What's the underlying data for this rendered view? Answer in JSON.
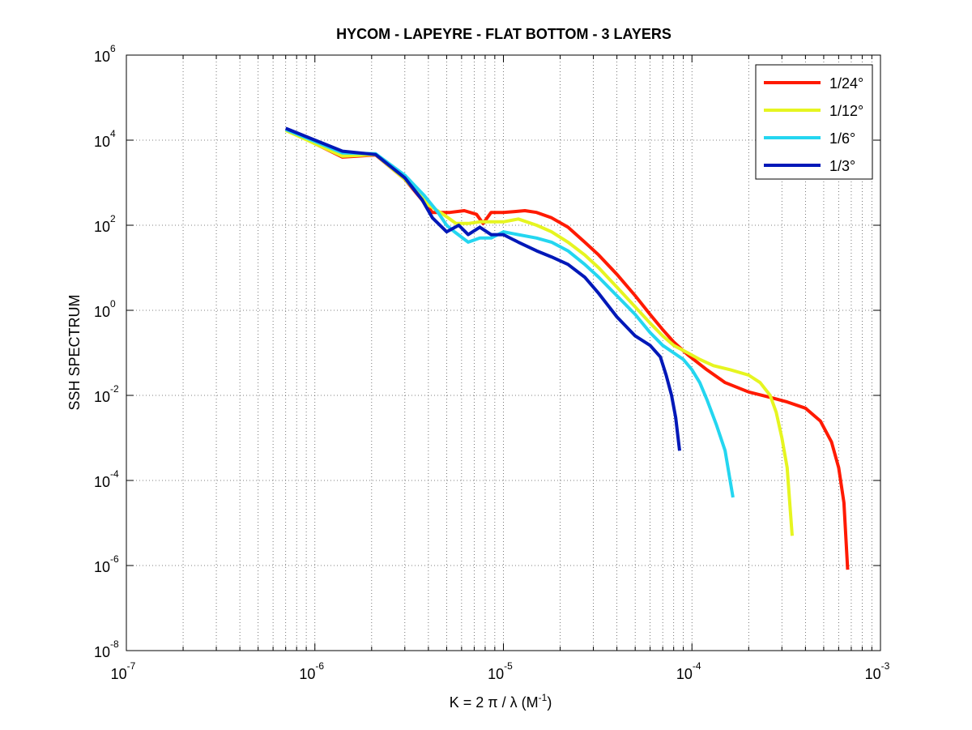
{
  "chart_data": {
    "type": "line",
    "title": "HYCOM - LAPEYRE - FLAT BOTTOM - 3 LAYERS",
    "xlabel_parts": {
      "main": "K = 2 π / λ  (M",
      "exp": "-1",
      "close": ")"
    },
    "ylabel": "SSH SPECTRUM",
    "x_scale": "log",
    "y_scale": "log",
    "xlim": [
      1e-07,
      0.001
    ],
    "ylim": [
      1e-08,
      1000000.0
    ],
    "x_ticks": [
      {
        "base": "10",
        "exp": "-7",
        "value": 1e-07
      },
      {
        "base": "10",
        "exp": "-6",
        "value": 1e-06
      },
      {
        "base": "10",
        "exp": "-5",
        "value": 1e-05
      },
      {
        "base": "10",
        "exp": "-4",
        "value": 0.0001
      },
      {
        "base": "10",
        "exp": "-3",
        "value": 0.001
      }
    ],
    "y_ticks": [
      {
        "base": "10",
        "exp": "-8",
        "value": 1e-08
      },
      {
        "base": "10",
        "exp": "-6",
        "value": 1e-06
      },
      {
        "base": "10",
        "exp": "-4",
        "value": 0.0001
      },
      {
        "base": "10",
        "exp": "-2",
        "value": 0.01
      },
      {
        "base": "10",
        "exp": "0",
        "value": 1
      },
      {
        "base": "10",
        "exp": "2",
        "value": 100
      },
      {
        "base": "10",
        "exp": "4",
        "value": 10000.0
      },
      {
        "base": "10",
        "exp": "6",
        "value": 1000000.0
      }
    ],
    "grid": true,
    "legend_position": "top-right",
    "series": [
      {
        "name": "1/24°",
        "color": "#ff1a00",
        "points": [
          [
            7e-07,
            18000
          ],
          [
            1.4e-06,
            4000
          ],
          [
            2.1e-06,
            4500
          ],
          [
            3e-06,
            1200
          ],
          [
            4.2e-06,
            200
          ],
          [
            5.2e-06,
            200
          ],
          [
            6.2e-06,
            220
          ],
          [
            7.2e-06,
            180
          ],
          [
            7.8e-06,
            110
          ],
          [
            8.6e-06,
            200
          ],
          [
            1e-05,
            200
          ],
          [
            1.15e-05,
            210
          ],
          [
            1.3e-05,
            220
          ],
          [
            1.5e-05,
            200
          ],
          [
            1.8e-05,
            150
          ],
          [
            2.2e-05,
            90
          ],
          [
            2.7e-05,
            40
          ],
          [
            3.2e-05,
            20
          ],
          [
            4e-05,
            7
          ],
          [
            5e-05,
            2.2
          ],
          [
            6e-05,
            0.8
          ],
          [
            7e-05,
            0.35
          ],
          [
            8e-05,
            0.18
          ],
          [
            9.5e-05,
            0.09
          ],
          [
            0.00012,
            0.04
          ],
          [
            0.00015,
            0.02
          ],
          [
            0.0002,
            0.012
          ],
          [
            0.00026,
            0.009
          ],
          [
            0.00032,
            0.007
          ],
          [
            0.0004,
            0.005
          ],
          [
            0.00048,
            0.0025
          ],
          [
            0.00055,
            0.0008
          ],
          [
            0.0006,
            0.0002
          ],
          [
            0.00064,
            3e-05
          ],
          [
            0.00067,
            8e-07
          ]
        ]
      },
      {
        "name": "1/12°",
        "color": "#e6f520",
        "points": [
          [
            7e-07,
            17000
          ],
          [
            1.4e-06,
            4200
          ],
          [
            2.1e-06,
            4600
          ],
          [
            3e-06,
            1200
          ],
          [
            4e-06,
            300
          ],
          [
            4.8e-06,
            180
          ],
          [
            5.6e-06,
            110
          ],
          [
            6.5e-06,
            110
          ],
          [
            7.5e-06,
            120
          ],
          [
            8.6e-06,
            120
          ],
          [
            1e-05,
            120
          ],
          [
            1.2e-05,
            140
          ],
          [
            1.5e-05,
            100
          ],
          [
            1.8e-05,
            70
          ],
          [
            2.2e-05,
            40
          ],
          [
            2.7e-05,
            20
          ],
          [
            3.2e-05,
            10
          ],
          [
            4e-05,
            3.5
          ],
          [
            5e-05,
            1.2
          ],
          [
            6e-05,
            0.5
          ],
          [
            7e-05,
            0.25
          ],
          [
            8e-05,
            0.15
          ],
          [
            9.5e-05,
            0.1
          ],
          [
            0.00011,
            0.07
          ],
          [
            0.00013,
            0.05
          ],
          [
            0.00016,
            0.04
          ],
          [
            0.0002,
            0.03
          ],
          [
            0.00023,
            0.02
          ],
          [
            0.00026,
            0.01
          ],
          [
            0.00028,
            0.004
          ],
          [
            0.0003,
            0.001
          ],
          [
            0.00032,
            0.0002
          ],
          [
            0.00034,
            5e-06
          ]
        ]
      },
      {
        "name": "1/6°",
        "color": "#24d6f0",
        "points": [
          [
            7e-07,
            18000
          ],
          [
            1.4e-06,
            5000
          ],
          [
            2.1e-06,
            4800
          ],
          [
            3e-06,
            1500
          ],
          [
            3.8e-06,
            500
          ],
          [
            4.5e-06,
            200
          ],
          [
            5e-06,
            100
          ],
          [
            5.5e-06,
            70
          ],
          [
            6.5e-06,
            40
          ],
          [
            7.5e-06,
            50
          ],
          [
            8.6e-06,
            50
          ],
          [
            1e-05,
            70
          ],
          [
            1.2e-05,
            60
          ],
          [
            1.5e-05,
            50
          ],
          [
            1.8e-05,
            40
          ],
          [
            2.2e-05,
            25
          ],
          [
            2.7e-05,
            12
          ],
          [
            3.2e-05,
            6
          ],
          [
            4e-05,
            2.2
          ],
          [
            5e-05,
            0.8
          ],
          [
            6e-05,
            0.3
          ],
          [
            7e-05,
            0.15
          ],
          [
            8e-05,
            0.1
          ],
          [
            9e-05,
            0.07
          ],
          [
            0.0001,
            0.04
          ],
          [
            0.00011,
            0.02
          ],
          [
            0.00012,
            0.008
          ],
          [
            0.000135,
            0.002
          ],
          [
            0.00015,
            0.0005
          ],
          [
            0.000165,
            4e-05
          ]
        ]
      },
      {
        "name": "1/3°",
        "color": "#0018b8",
        "points": [
          [
            7e-07,
            19000
          ],
          [
            1.4e-06,
            5500
          ],
          [
            2.1e-06,
            4600
          ],
          [
            3e-06,
            1300
          ],
          [
            3.7e-06,
            400
          ],
          [
            4.2e-06,
            150
          ],
          [
            5e-06,
            70
          ],
          [
            5.8e-06,
            100
          ],
          [
            6.5e-06,
            60
          ],
          [
            7.5e-06,
            90
          ],
          [
            8.6e-06,
            60
          ],
          [
            1e-05,
            60
          ],
          [
            1.2e-05,
            40
          ],
          [
            1.5e-05,
            25
          ],
          [
            1.8e-05,
            18
          ],
          [
            2.2e-05,
            12
          ],
          [
            2.7e-05,
            6
          ],
          [
            3.2e-05,
            2.5
          ],
          [
            4e-05,
            0.7
          ],
          [
            5e-05,
            0.25
          ],
          [
            6e-05,
            0.15
          ],
          [
            6.8e-05,
            0.08
          ],
          [
            7.3e-05,
            0.03
          ],
          [
            7.8e-05,
            0.01
          ],
          [
            8.2e-05,
            0.003
          ],
          [
            8.6e-05,
            0.0005
          ]
        ]
      }
    ]
  }
}
